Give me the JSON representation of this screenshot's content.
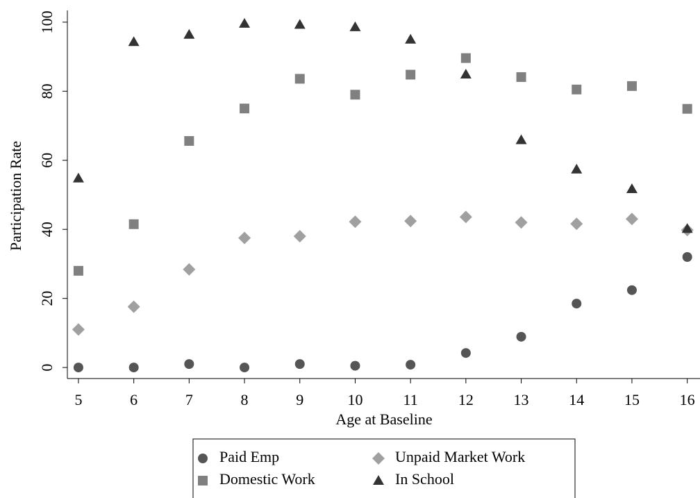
{
  "chart_data": {
    "type": "scatter",
    "x_label": "Age at Baseline",
    "y_label": "Participation Rate",
    "x": [
      5,
      6,
      7,
      8,
      9,
      10,
      11,
      12,
      13,
      14,
      15,
      16
    ],
    "series": [
      {
        "name": "Paid Emp",
        "color": "#555555",
        "marker": "circle",
        "values": [
          0,
          0,
          1,
          0,
          1,
          0.5,
          0.8,
          4.2,
          8.9,
          18.5,
          22.4,
          32
        ]
      },
      {
        "name": "Unpaid Market Work",
        "color": "#a0a0a0",
        "marker": "diamond",
        "values": [
          11,
          17.6,
          28.4,
          37.5,
          38,
          42.2,
          42.4,
          43.6,
          42,
          41.6,
          43,
          39.8
        ]
      },
      {
        "name": "Domestic Work",
        "color": "#808080",
        "marker": "square",
        "values": [
          28,
          41.5,
          65.6,
          75,
          83.6,
          79,
          84.8,
          89.6,
          84.1,
          80.5,
          81.5,
          74.9
        ]
      },
      {
        "name": "In School",
        "color": "#333333",
        "marker": "triangle",
        "values": [
          54.8,
          94.3,
          96.4,
          99.6,
          99.3,
          98.6,
          95,
          84.9,
          65.9,
          57.4,
          51.7,
          40.2
        ]
      }
    ],
    "xlim": [
      4.8,
      16.23
    ],
    "xticks": [
      5,
      6,
      7,
      8,
      9,
      10,
      11,
      12,
      13,
      14,
      15,
      16
    ],
    "ylim": [
      -3.2,
      103.4
    ],
    "yticks": [
      0,
      20,
      40,
      60,
      80,
      100
    ],
    "grid": false
  }
}
